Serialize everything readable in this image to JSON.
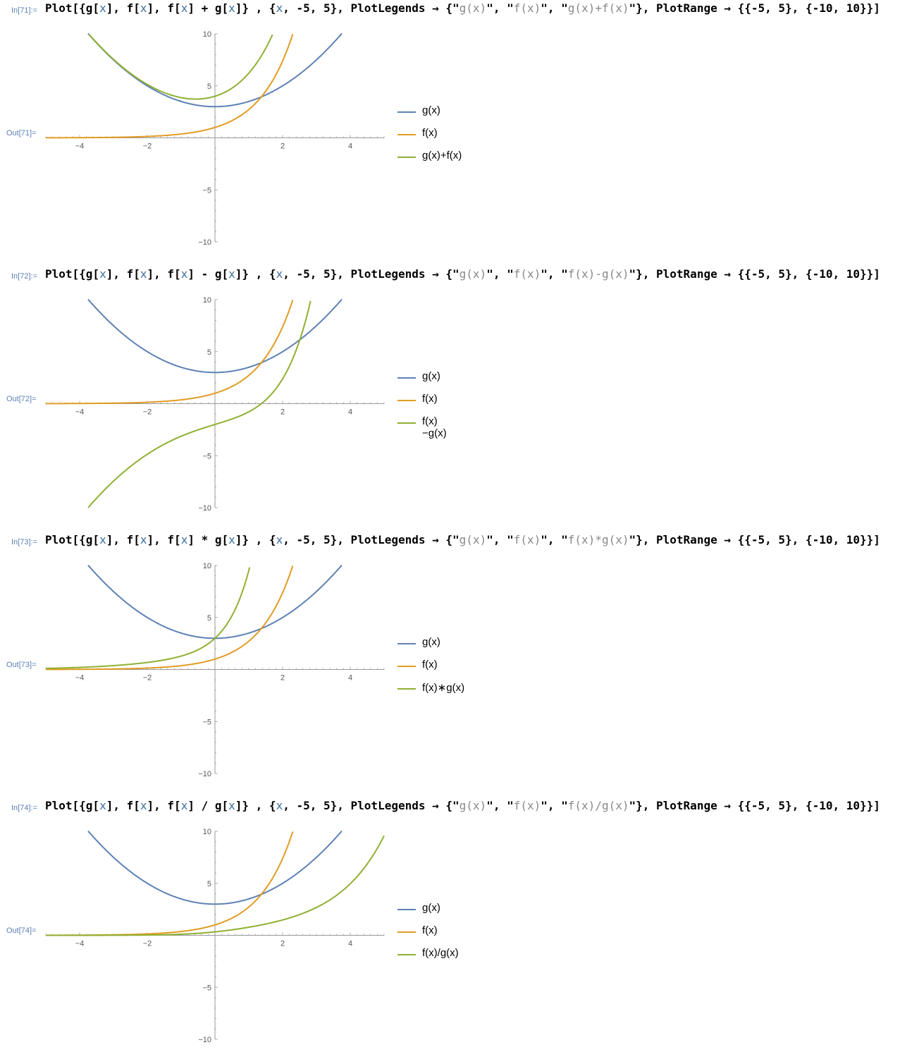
{
  "colors": {
    "g": "#5e81b5",
    "f": "#e19c24",
    "combo": "#8fb032",
    "label": "#5a7fb5"
  },
  "cells": [
    {
      "in_label": "In[71]:=",
      "out_label": "Out[71]=",
      "input_parts": [
        [
          "kw",
          "Plot[{g["
        ],
        [
          "arg",
          "x"
        ],
        [
          "kw",
          "], f["
        ],
        [
          "arg",
          "x"
        ],
        [
          "kw",
          "], f["
        ],
        [
          "arg",
          "x"
        ],
        [
          "kw",
          "] + g["
        ],
        [
          "arg",
          "x"
        ],
        [
          "kw",
          "]} , {"
        ],
        [
          "arg",
          "x"
        ],
        [
          "kw",
          ", -5, 5}, PlotLegends → {\""
        ],
        [
          "str",
          "g(x)"
        ],
        [
          "kw",
          "\", \""
        ],
        [
          "str",
          "f(x)"
        ],
        [
          "kw",
          "\", \""
        ],
        [
          "str",
          "g(x)+f(x)"
        ],
        [
          "kw",
          "\"}, PlotRange → {{-5, 5}, {-10, 10}}]"
        ]
      ],
      "op": "sum",
      "legend": [
        "g(x)",
        "f(x)",
        "g(x)+f(x)"
      ]
    },
    {
      "in_label": "In[72]:=",
      "out_label": "Out[72]=",
      "input_parts": [
        [
          "kw",
          "Plot[{g["
        ],
        [
          "arg",
          "x"
        ],
        [
          "kw",
          "], f["
        ],
        [
          "arg",
          "x"
        ],
        [
          "kw",
          "], f["
        ],
        [
          "arg",
          "x"
        ],
        [
          "kw",
          "] - g["
        ],
        [
          "arg",
          "x"
        ],
        [
          "kw",
          "]} , {"
        ],
        [
          "arg",
          "x"
        ],
        [
          "kw",
          ", -5, 5}, PlotLegends → {\""
        ],
        [
          "str",
          "g(x)"
        ],
        [
          "kw",
          "\", \""
        ],
        [
          "str",
          "f(x)"
        ],
        [
          "kw",
          "\", \""
        ],
        [
          "str",
          "f(x)-g(x)"
        ],
        [
          "kw",
          "\"}, PlotRange → {{-5, 5}, {-10, 10}}]"
        ]
      ],
      "op": "diff",
      "legend": [
        "g(x)",
        "f(x)",
        "f(x)−g(x)"
      ]
    },
    {
      "in_label": "In[73]:=",
      "out_label": "Out[73]=",
      "input_parts": [
        [
          "kw",
          "Plot[{g["
        ],
        [
          "arg",
          "x"
        ],
        [
          "kw",
          "], f["
        ],
        [
          "arg",
          "x"
        ],
        [
          "kw",
          "], f["
        ],
        [
          "arg",
          "x"
        ],
        [
          "kw",
          "] * g["
        ],
        [
          "arg",
          "x"
        ],
        [
          "kw",
          "]} , {"
        ],
        [
          "arg",
          "x"
        ],
        [
          "kw",
          ", -5, 5}, PlotLegends → {\""
        ],
        [
          "str",
          "g(x)"
        ],
        [
          "kw",
          "\", \""
        ],
        [
          "str",
          "f(x)"
        ],
        [
          "kw",
          "\", \""
        ],
        [
          "str",
          "f(x)*g(x)"
        ],
        [
          "kw",
          "\"}, PlotRange → {{-5, 5}, {-10, 10}}]"
        ]
      ],
      "op": "prod",
      "legend": [
        "g(x)",
        "f(x)",
        "f(x)∗g(x)"
      ]
    },
    {
      "in_label": "In[74]:=",
      "out_label": "Out[74]=",
      "input_parts": [
        [
          "kw",
          "Plot[{g["
        ],
        [
          "arg",
          "x"
        ],
        [
          "kw",
          "], f["
        ],
        [
          "arg",
          "x"
        ],
        [
          "kw",
          "], f["
        ],
        [
          "arg",
          "x"
        ],
        [
          "kw",
          "] / g["
        ],
        [
          "arg",
          "x"
        ],
        [
          "kw",
          "]} , {"
        ],
        [
          "arg",
          "x"
        ],
        [
          "kw",
          ", -5, 5}, PlotLegends → {\""
        ],
        [
          "str",
          "g(x)"
        ],
        [
          "kw",
          "\", \""
        ],
        [
          "str",
          "f(x)"
        ],
        [
          "kw",
          "\", \""
        ],
        [
          "str",
          "f(x)/g(x)"
        ],
        [
          "kw",
          "\"}, PlotRange → {{-5, 5}, {-10, 10}}]"
        ]
      ],
      "op": "quot",
      "legend": [
        "g(x)",
        "f(x)",
        "f(x)/g(x)"
      ]
    }
  ],
  "chart_data": [
    {
      "type": "line",
      "xlim": [
        -5,
        5
      ],
      "ylim": [
        -10,
        10
      ],
      "x_ticks": [
        -4,
        -2,
        2,
        4
      ],
      "y_ticks": [
        10,
        5,
        -5,
        -10
      ],
      "x_tick_labels": [
        "−4",
        "−2",
        "2",
        "4"
      ],
      "y_tick_labels": [
        "10",
        "5",
        "−5",
        "−10"
      ],
      "legend_position": "right",
      "series": [
        {
          "name": "g(x)",
          "x": [
            -3.74,
            -3,
            -2,
            -1,
            0,
            1,
            2,
            3,
            3.74
          ],
          "y": [
            10,
            7.5,
            5,
            3.5,
            3,
            3.5,
            5,
            7.5,
            10
          ]
        },
        {
          "name": "f(x)",
          "x": [
            -5,
            -4,
            -3,
            -2,
            -1,
            0,
            1,
            1.5,
            2,
            2.3
          ],
          "y": [
            0.01,
            0.02,
            0.05,
            0.14,
            0.37,
            1,
            2.72,
            4.48,
            7.39,
            9.97
          ]
        },
        {
          "name": "g(x)+f(x)",
          "x": [
            -3.74,
            -3,
            -2,
            -1,
            -0.5,
            0,
            0.5,
            1,
            1.5,
            1.77
          ],
          "y": [
            10.0,
            7.55,
            5.14,
            3.87,
            3.73,
            4,
            4.77,
            6.22,
            8.6,
            10.0
          ]
        }
      ]
    },
    {
      "type": "line",
      "xlim": [
        -5,
        5
      ],
      "ylim": [
        -10,
        10
      ],
      "x_ticks": [
        -4,
        -2,
        2,
        4
      ],
      "y_ticks": [
        10,
        5,
        -5,
        -10
      ],
      "x_tick_labels": [
        "−4",
        "−2",
        "2",
        "4"
      ],
      "y_tick_labels": [
        "10",
        "5",
        "−5",
        "−10"
      ],
      "legend_position": "right",
      "series": [
        {
          "name": "g(x)",
          "x": [
            -3.74,
            -3,
            -2,
            -1,
            0,
            1,
            2,
            3,
            3.74
          ],
          "y": [
            10,
            7.5,
            5,
            3.5,
            3,
            3.5,
            5,
            7.5,
            10
          ]
        },
        {
          "name": "f(x)",
          "x": [
            -5,
            -4,
            -3,
            -2,
            -1,
            0,
            1,
            1.5,
            2,
            2.3
          ],
          "y": [
            0.01,
            0.02,
            0.05,
            0.14,
            0.37,
            1,
            2.72,
            4.48,
            7.39,
            9.97
          ]
        },
        {
          "name": "f(x)−g(x)",
          "x": [
            -3.74,
            -3,
            -2,
            -1,
            0,
            1,
            1.5,
            2,
            2.5,
            2.8
          ],
          "y": [
            -9.98,
            -7.45,
            -4.86,
            -3.13,
            -2,
            -0.78,
            0.36,
            2.39,
            6.06,
            9.0
          ]
        }
      ]
    },
    {
      "type": "line",
      "xlim": [
        -5,
        5
      ],
      "ylim": [
        -10,
        10
      ],
      "x_ticks": [
        -4,
        -2,
        2,
        4
      ],
      "y_ticks": [
        10,
        5,
        -5,
        -10
      ],
      "x_tick_labels": [
        "−4",
        "−2",
        "2",
        "4"
      ],
      "y_tick_labels": [
        "10",
        "5",
        "−5",
        "−10"
      ],
      "legend_position": "right",
      "series": [
        {
          "name": "g(x)",
          "x": [
            -3.74,
            -3,
            -2,
            -1,
            0,
            1,
            2,
            3,
            3.74
          ],
          "y": [
            10,
            7.5,
            5,
            3.5,
            3,
            3.5,
            5,
            7.5,
            10
          ]
        },
        {
          "name": "f(x)",
          "x": [
            -5,
            -4,
            -3,
            -2,
            -1,
            0,
            1,
            1.5,
            2,
            2.3
          ],
          "y": [
            0.01,
            0.02,
            0.05,
            0.14,
            0.37,
            1,
            2.72,
            4.48,
            7.39,
            9.97
          ]
        },
        {
          "name": "f(x)∗g(x)",
          "x": [
            -5,
            -4,
            -3,
            -2,
            -1,
            -0.5,
            0,
            0.5,
            1.0,
            1.05
          ],
          "y": [
            0.1,
            0.2,
            0.37,
            0.68,
            1.29,
            1.97,
            3,
            4.66,
            9.51,
            9.8
          ]
        }
      ]
    },
    {
      "type": "line",
      "xlim": [
        -5,
        5
      ],
      "ylim": [
        -10,
        10
      ],
      "x_ticks": [
        -4,
        -2,
        2,
        4
      ],
      "y_ticks": [
        10,
        5,
        -5,
        -10
      ],
      "x_tick_labels": [
        "−4",
        "−2",
        "2",
        "4"
      ],
      "y_tick_labels": [
        "10",
        "5",
        "−5",
        "−10"
      ],
      "legend_position": "right",
      "series": [
        {
          "name": "g(x)",
          "x": [
            -3.74,
            -3,
            -2,
            -1,
            0,
            1,
            2,
            3,
            3.74
          ],
          "y": [
            10,
            7.5,
            5,
            3.5,
            3,
            3.5,
            5,
            7.5,
            10
          ]
        },
        {
          "name": "f(x)",
          "x": [
            -5,
            -4,
            -3,
            -2,
            -1,
            0,
            1,
            1.5,
            2,
            2.3
          ],
          "y": [
            0.01,
            0.02,
            0.05,
            0.14,
            0.37,
            1,
            2.72,
            4.48,
            7.39,
            9.97
          ]
        },
        {
          "name": "f(x)/g(x)",
          "x": [
            -5,
            -3,
            -1,
            0,
            1,
            2,
            3,
            4,
            5
          ],
          "y": [
            0.0,
            0.01,
            0.11,
            0.33,
            0.78,
            1.48,
            2.68,
            5.46,
            9.66
          ]
        }
      ]
    }
  ]
}
